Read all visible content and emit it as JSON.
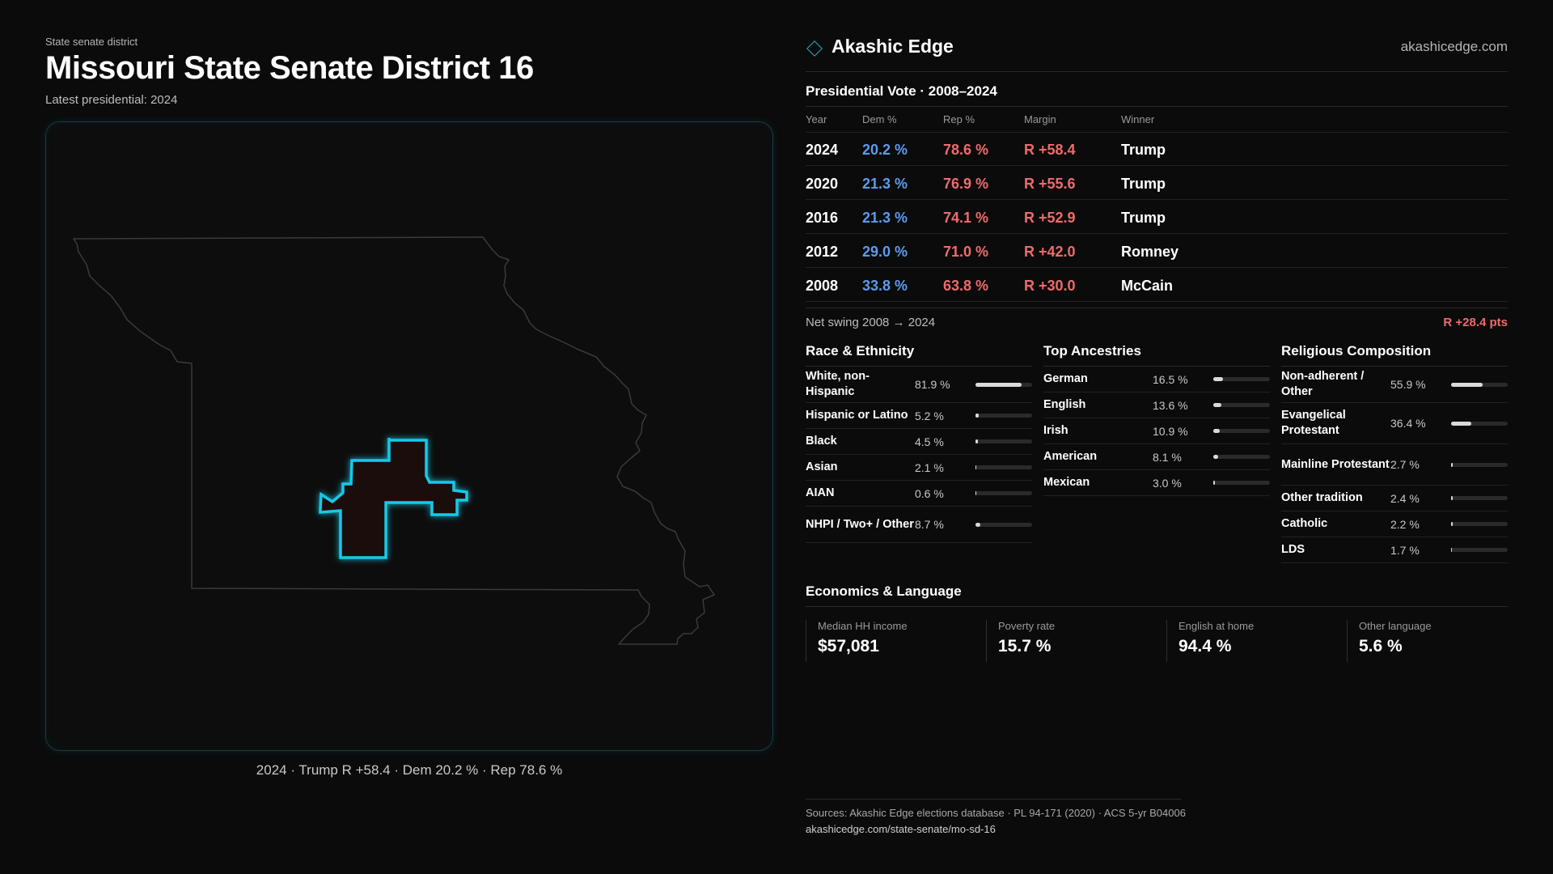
{
  "header": {
    "eyebrow": "State senate district",
    "title": "Missouri State Senate District 16",
    "subtitle": "Latest presidential: 2024"
  },
  "map": {
    "caption": "2024 · Trump R +58.4 · Dem 20.2 % · Rep 78.6 %",
    "district_color": "#19c9e6",
    "state_outline_color": "#3a3a3a"
  },
  "brand": {
    "icon": "diamond-icon",
    "name": "Akashic Edge",
    "url": "akashicedge.com",
    "accent": "#18b6c9"
  },
  "presidential": {
    "title": "Presidential Vote · 2008–2024",
    "headers": [
      "Year",
      "Dem %",
      "Rep %",
      "Margin",
      "Winner"
    ],
    "rows": [
      {
        "year": "2024",
        "dem": "20.2 %",
        "rep": "78.6 %",
        "margin": "R +58.4",
        "winner": "Trump"
      },
      {
        "year": "2020",
        "dem": "21.3 %",
        "rep": "76.9 %",
        "margin": "R +55.6",
        "winner": "Trump"
      },
      {
        "year": "2016",
        "dem": "21.3 %",
        "rep": "74.1 %",
        "margin": "R +52.9",
        "winner": "Trump"
      },
      {
        "year": "2012",
        "dem": "29.0 %",
        "rep": "71.0 %",
        "margin": "R +42.0",
        "winner": "Romney"
      },
      {
        "year": "2008",
        "dem": "33.8 %",
        "rep": "63.8 %",
        "margin": "R +30.0",
        "winner": "McCain"
      }
    ],
    "swing_label": "Net swing 2008 → 2024",
    "swing_value": "R +28.4 pts",
    "dem_color": "#5b9bf0",
    "rep_color": "#ef6b6b"
  },
  "race": {
    "title": "Race & Ethnicity",
    "rows": [
      {
        "label": "White, non-Hispanic",
        "pct": "81.9 %",
        "value": 81.9
      },
      {
        "label": "Hispanic or Latino",
        "pct": "5.2 %",
        "value": 5.2
      },
      {
        "label": "Black",
        "pct": "4.5 %",
        "value": 4.5
      },
      {
        "label": "Asian",
        "pct": "2.1 %",
        "value": 2.1
      },
      {
        "label": "AIAN",
        "pct": "0.6 %",
        "value": 0.6
      },
      {
        "label": "NHPI / Two+ / Other",
        "pct": "8.7 %",
        "value": 8.7
      }
    ]
  },
  "ancestry": {
    "title": "Top Ancestries",
    "rows": [
      {
        "label": "German",
        "pct": "16.5 %",
        "value": 16.5
      },
      {
        "label": "English",
        "pct": "13.6 %",
        "value": 13.6
      },
      {
        "label": "Irish",
        "pct": "10.9 %",
        "value": 10.9
      },
      {
        "label": "American",
        "pct": "8.1 %",
        "value": 8.1
      },
      {
        "label": "Mexican",
        "pct": "3.0 %",
        "value": 3.0
      }
    ]
  },
  "religion": {
    "title": "Religious Composition",
    "rows": [
      {
        "label": "Non-adherent / Other",
        "pct": "55.9 %",
        "value": 55.9
      },
      {
        "label": "Evangelical Protestant",
        "pct": "36.4 %",
        "value": 36.4
      },
      {
        "label": "Mainline Protestant",
        "pct": "2.7 %",
        "value": 2.7
      },
      {
        "label": "Other tradition",
        "pct": "2.4 %",
        "value": 2.4
      },
      {
        "label": "Catholic",
        "pct": "2.2 %",
        "value": 2.2
      },
      {
        "label": "LDS",
        "pct": "1.7 %",
        "value": 1.7
      }
    ]
  },
  "economics": {
    "title": "Economics & Language",
    "items": [
      {
        "label": "Median HH income",
        "value": "$57,081"
      },
      {
        "label": "Poverty rate",
        "value": "15.7 %"
      },
      {
        "label": "English at home",
        "value": "94.4 %"
      },
      {
        "label": "Other language",
        "value": "5.6 %"
      }
    ]
  },
  "footer": {
    "sources": "Sources: Akashic Edge elections database · PL 94-171 (2020) · ACS 5-yr B04006",
    "url": "akashicedge.com/state-senate/mo-sd-16"
  }
}
